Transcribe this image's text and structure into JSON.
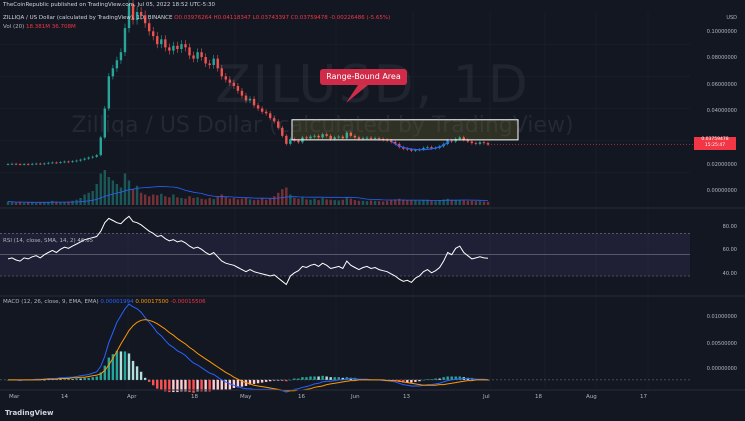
{
  "header": {
    "published": "TheCoinRepublic published on TradingView.com, Jul 05, 2022 18:52 UTC-5:30",
    "symbol_line": "ZILLIQA / US Dollar (calculated by TradingView), 1D, BINANCE",
    "ohlc": "O0.03976264 H0.04118347 L0.03743397 C0.03759478 -0.00226486 (-5.65%)",
    "vol_label": "Vol (20)",
    "vol_values": "18.381M 36.708M"
  },
  "watermark": {
    "main": "ZILUSD, 1D",
    "sub": "Zilliqa / US Dollar (calculated by TradingView)"
  },
  "annotation": {
    "label": "Range-Bound Area"
  },
  "price_axis": {
    "labels": [
      "USD",
      "0.10000000",
      "0.08000000",
      "0.06000000",
      "0.04000000",
      "0.02000000",
      "0.00000000"
    ],
    "current_tag": [
      "0.03759478",
      "15:25:47"
    ]
  },
  "rsi": {
    "label": "RSI (14, close, SMA, 14, 2)",
    "value": "46.65",
    "axis": [
      "80.00",
      "60.00",
      "40.00"
    ],
    "levels": {
      "upper": 70,
      "middle": 50,
      "lower": 30
    }
  },
  "macd": {
    "label": "MACD (12, 26, close, 9, EMA, EMA)",
    "values": [
      "0.00001994",
      "0.00017500",
      "-0.00015506"
    ],
    "axis": [
      "0.01000000",
      "0.00500000",
      "0.00000000"
    ]
  },
  "x_axis": [
    "Mar",
    "14",
    "Apr",
    "18",
    "May",
    "16",
    "Jun",
    "13",
    "Jul",
    "18",
    "Aug",
    "17"
  ],
  "footer": {
    "logo": "TradingView"
  },
  "colors": {
    "up": "#26a69a",
    "down": "#ef5350",
    "rsi_line": "#ffffff",
    "macd_line": "#2962ff",
    "signal_line": "#ff9800",
    "callout": "#d02c4a",
    "background": "#131722"
  },
  "chart_data": [
    {
      "type": "candlestick",
      "title": "ZILLIQA / US Dollar (calculated by TradingView), 1D, BINANCE",
      "ylabel": "USD",
      "ylim": [
        0.0,
        0.12
      ],
      "close": [
        0.0255,
        0.0256,
        0.0254,
        0.0252,
        0.0255,
        0.0253,
        0.0256,
        0.0257,
        0.0255,
        0.0258,
        0.0262,
        0.0264,
        0.0262,
        0.0266,
        0.027,
        0.0268,
        0.0272,
        0.0276,
        0.0282,
        0.0288,
        0.0295,
        0.03,
        0.031,
        0.042,
        0.06,
        0.08,
        0.085,
        0.09,
        0.095,
        0.11,
        0.125,
        0.115,
        0.12,
        0.118,
        0.113,
        0.108,
        0.105,
        0.1,
        0.103,
        0.098,
        0.096,
        0.099,
        0.097,
        0.1,
        0.098,
        0.093,
        0.091,
        0.095,
        0.092,
        0.088,
        0.087,
        0.091,
        0.085,
        0.08,
        0.078,
        0.076,
        0.074,
        0.071,
        0.068,
        0.065,
        0.066,
        0.062,
        0.06,
        0.058,
        0.057,
        0.054,
        0.052,
        0.048,
        0.043,
        0.038,
        0.041,
        0.04,
        0.039,
        0.042,
        0.0415,
        0.0425,
        0.043,
        0.042,
        0.044,
        0.043,
        0.041,
        0.042,
        0.0425,
        0.0415,
        0.045,
        0.043,
        0.042,
        0.041,
        0.0415,
        0.0418,
        0.0412,
        0.0415,
        0.041,
        0.0405,
        0.04,
        0.0392,
        0.038,
        0.036,
        0.035,
        0.0345,
        0.0338,
        0.0342,
        0.0345,
        0.0355,
        0.036,
        0.0352,
        0.0355,
        0.0365,
        0.038,
        0.04,
        0.0395,
        0.041,
        0.042,
        0.0405,
        0.0395,
        0.0385,
        0.038,
        0.039,
        0.0385,
        0.0376
      ],
      "volume": [
        0.1,
        0.08,
        0.07,
        0.09,
        0.06,
        0.08,
        0.07,
        0.06,
        0.08,
        0.07,
        0.09,
        0.12,
        0.1,
        0.08,
        0.09,
        0.1,
        0.12,
        0.15,
        0.2,
        0.3,
        0.35,
        0.4,
        0.6,
        0.9,
        1.0,
        0.8,
        0.7,
        0.6,
        0.5,
        0.9,
        0.7,
        0.45,
        0.55,
        0.35,
        0.3,
        0.25,
        0.3,
        0.28,
        0.32,
        0.25,
        0.22,
        0.3,
        0.22,
        0.2,
        0.18,
        0.25,
        0.2,
        0.22,
        0.18,
        0.16,
        0.2,
        0.17,
        0.25,
        0.3,
        0.22,
        0.18,
        0.2,
        0.16,
        0.18,
        0.2,
        0.16,
        0.14,
        0.15,
        0.2,
        0.15,
        0.18,
        0.25,
        0.35,
        0.45,
        0.5,
        0.3,
        0.2,
        0.18,
        0.22,
        0.16,
        0.15,
        0.18,
        0.14,
        0.2,
        0.16,
        0.15,
        0.14,
        0.13,
        0.15,
        0.22,
        0.18,
        0.14,
        0.12,
        0.12,
        0.11,
        0.13,
        0.12,
        0.11,
        0.1,
        0.12,
        0.14,
        0.16,
        0.18,
        0.15,
        0.13,
        0.14,
        0.13,
        0.12,
        0.14,
        0.15,
        0.12,
        0.11,
        0.13,
        0.16,
        0.18,
        0.15,
        0.14,
        0.15,
        0.13,
        0.12,
        0.12,
        0.11,
        0.11,
        0.1,
        0.09
      ],
      "range_bound_area": {
        "low": 0.0405,
        "high": 0.053
      },
      "rsi": {
        "ylim": [
          15,
          90
        ],
        "values": [
          46,
          47,
          45,
          44,
          47,
          46,
          48,
          49,
          47,
          50,
          52,
          54,
          52,
          55,
          57,
          56,
          58,
          60,
          62,
          64,
          65,
          66,
          67,
          72,
          80,
          84,
          82,
          80,
          79,
          83,
          86,
          81,
          80,
          78,
          75,
          72,
          70,
          67,
          68,
          65,
          63,
          64,
          62,
          63,
          61,
          58,
          56,
          57,
          55,
          52,
          50,
          52,
          48,
          44,
          42,
          41,
          40,
          38,
          36,
          34,
          36,
          34,
          33,
          32,
          31,
          30,
          31,
          28,
          25,
          22,
          30,
          33,
          35,
          39,
          38,
          40,
          41,
          39,
          42,
          40,
          37,
          38,
          39,
          37,
          44,
          40,
          38,
          36,
          38,
          39,
          37,
          38,
          36,
          35,
          34,
          32,
          30,
          27,
          25,
          26,
          24,
          28,
          30,
          34,
          36,
          33,
          35,
          38,
          44,
          52,
          50,
          56,
          58,
          52,
          49,
          46,
          47,
          48,
          47,
          46.65
        ]
      },
      "macd": {
        "ylim": [
          -0.0012,
          0.0118
        ],
        "macd": [
          0.0,
          0.0,
          0.0,
          -0.0001,
          0.0,
          0.0,
          0.0,
          0.0001,
          0.0001,
          0.0001,
          0.0002,
          0.0002,
          0.0002,
          0.0003,
          0.0003,
          0.0004,
          0.0004,
          0.0005,
          0.0006,
          0.0007,
          0.0008,
          0.001,
          0.0012,
          0.002,
          0.0035,
          0.0055,
          0.007,
          0.0085,
          0.0095,
          0.0105,
          0.0112,
          0.0108,
          0.0105,
          0.01,
          0.0092,
          0.0085,
          0.0078,
          0.007,
          0.0065,
          0.0058,
          0.0052,
          0.0048,
          0.0043,
          0.004,
          0.0036,
          0.003,
          0.0025,
          0.0022,
          0.0018,
          0.0014,
          0.001,
          0.0008,
          0.0004,
          0.0,
          -0.0003,
          -0.0006,
          -0.0008,
          -0.001,
          -0.0012,
          -0.0013,
          -0.0013,
          -0.0014,
          -0.0014,
          -0.0014,
          -0.0014,
          -0.0014,
          -0.0014,
          -0.0015,
          -0.0016,
          -0.0018,
          -0.0016,
          -0.0014,
          -0.0013,
          -0.0011,
          -0.001,
          -0.0008,
          -0.0006,
          -0.0005,
          -0.0003,
          -0.0002,
          -0.0002,
          -0.0001,
          0.0,
          0.0,
          0.0002,
          0.0002,
          0.0002,
          0.0001,
          0.0001,
          0.0001,
          0.0,
          0.0,
          0.0,
          -0.0001,
          -0.0001,
          -0.0002,
          -0.0003,
          -0.0005,
          -0.0007,
          -0.0008,
          -0.0009,
          -0.0009,
          -0.0009,
          -0.0008,
          -0.0007,
          -0.0007,
          -0.0006,
          -0.0005,
          -0.0003,
          -0.0001,
          0.0,
          0.0001,
          0.0002,
          0.0002,
          0.0002,
          0.0002,
          0.0001,
          0.0001,
          0.0001,
          0.0
        ],
        "signal": [
          0.0,
          0.0,
          0.0,
          0.0,
          0.0,
          0.0,
          0.0,
          0.0,
          0.0,
          0.0001,
          0.0001,
          0.0001,
          0.0001,
          0.0002,
          0.0002,
          0.0002,
          0.0003,
          0.0003,
          0.0004,
          0.0004,
          0.0005,
          0.0006,
          0.0007,
          0.0009,
          0.0014,
          0.0022,
          0.0032,
          0.0042,
          0.0053,
          0.0063,
          0.0073,
          0.008,
          0.0085,
          0.0088,
          0.0089,
          0.0088,
          0.0086,
          0.0083,
          0.0079,
          0.0075,
          0.007,
          0.0066,
          0.0061,
          0.0057,
          0.0053,
          0.0048,
          0.0044,
          0.0039,
          0.0035,
          0.0031,
          0.0027,
          0.0023,
          0.0019,
          0.0015,
          0.0011,
          0.0008,
          0.0004,
          0.0001,
          -0.0002,
          -0.0004,
          -0.0006,
          -0.0008,
          -0.0009,
          -0.001,
          -0.0011,
          -0.0012,
          -0.0013,
          -0.0014,
          -0.0015,
          -0.0016,
          -0.0016,
          -0.0016,
          -0.0015,
          -0.0015,
          -0.0014,
          -0.0013,
          -0.0011,
          -0.001,
          -0.0009,
          -0.0007,
          -0.0006,
          -0.0005,
          -0.0004,
          -0.0003,
          -0.0002,
          -0.0001,
          -0.0001,
          0.0,
          0.0,
          0.0,
          0.0,
          0.0,
          0.0,
          0.0,
          -0.0001,
          -0.0001,
          -0.0001,
          -0.0002,
          -0.0003,
          -0.0004,
          -0.0005,
          -0.0006,
          -0.0007,
          -0.0008,
          -0.0008,
          -0.0008,
          -0.0008,
          -0.0007,
          -0.0007,
          -0.0006,
          -0.0005,
          -0.0004,
          -0.0003,
          -0.0002,
          -0.0001,
          -0.0001,
          0.0,
          0.0,
          0.0,
          0.0
        ]
      }
    }
  ]
}
